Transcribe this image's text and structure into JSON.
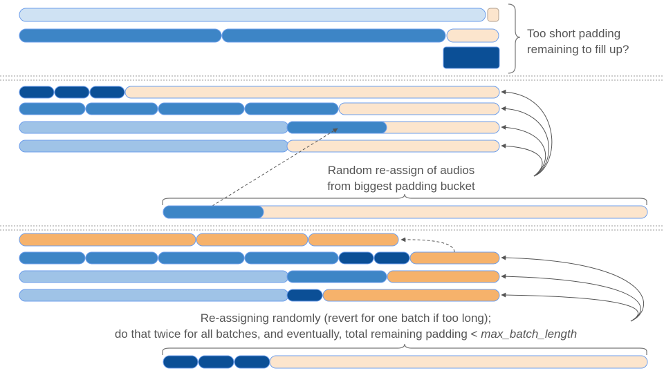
{
  "labels": {
    "question_line1": "Too short padding",
    "question_line2": "remaining to fill up?",
    "reassign_line1": "Random re-assign of audios",
    "reassign_line2": "from biggest padding bucket",
    "final_line1": "Re-assigning randomly (revert for one batch if too long);",
    "final_line2_prefix": "do that twice for all batches, and eventually, total remaining padding <",
    "final_line2_var": "max_batch_length"
  },
  "colors": {
    "light_blue": "#9fc3e7",
    "pale_blue": "#cfe2f3",
    "mid_blue": "#3d85c6",
    "dark_blue": "#0b4f96",
    "peach": "#fce5cd",
    "orange": "#f6b26b",
    "outline": "#6d9eeb",
    "divider": "#999999"
  },
  "segment_color_order": [
    "pale_blue",
    "mid_blue",
    "peach",
    "dark_blue",
    "light_blue",
    "orange"
  ]
}
